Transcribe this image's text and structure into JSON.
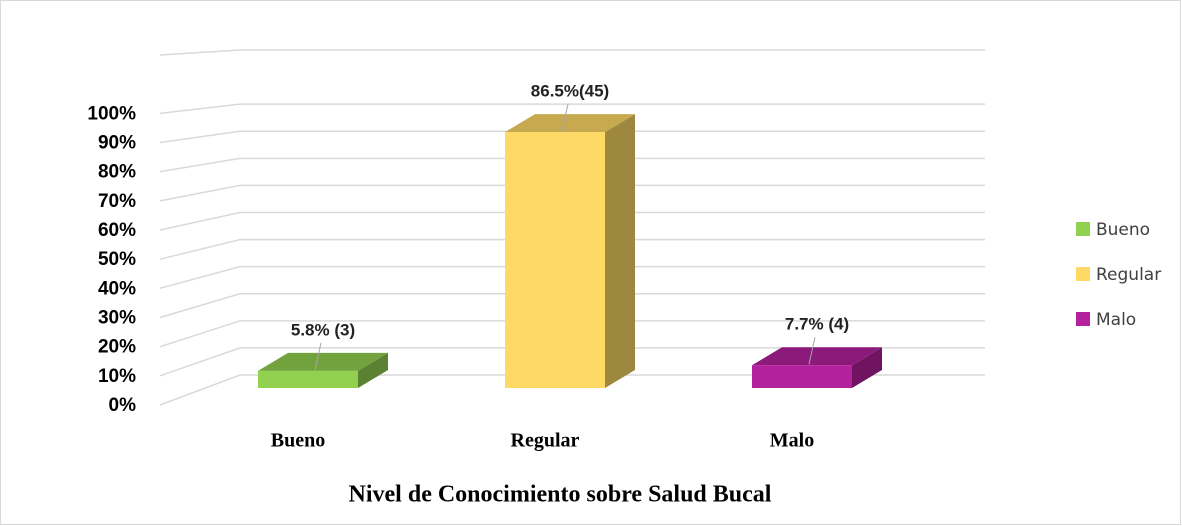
{
  "chart_data": {
    "type": "bar3d",
    "x_label": "Nivel de Conocimiento sobre Salud Bucal",
    "categories": [
      "Bueno",
      "Regular",
      "Malo"
    ],
    "values": [
      5.8,
      86.5,
      7.7
    ],
    "value_labels": [
      "5.8% (3)",
      "86.5%(45)",
      "7.7% (4)"
    ],
    "colors": [
      "#92d050",
      "#ffd966",
      "#b4219c"
    ],
    "ylim": [
      0,
      120
    ],
    "yticks": [
      {
        "value": 0,
        "label": "0%"
      },
      {
        "value": 10,
        "label": "10%"
      },
      {
        "value": 20,
        "label": "20%"
      },
      {
        "value": 30,
        "label": "30%"
      },
      {
        "value": 40,
        "label": "40%"
      },
      {
        "value": 50,
        "label": "50%"
      },
      {
        "value": 60,
        "label": "60%"
      },
      {
        "value": 70,
        "label": "70%"
      },
      {
        "value": 80,
        "label": "80%"
      },
      {
        "value": 90,
        "label": "90%"
      },
      {
        "value": 100,
        "label": "100%"
      }
    ],
    "grid": true,
    "legend": "right"
  }
}
